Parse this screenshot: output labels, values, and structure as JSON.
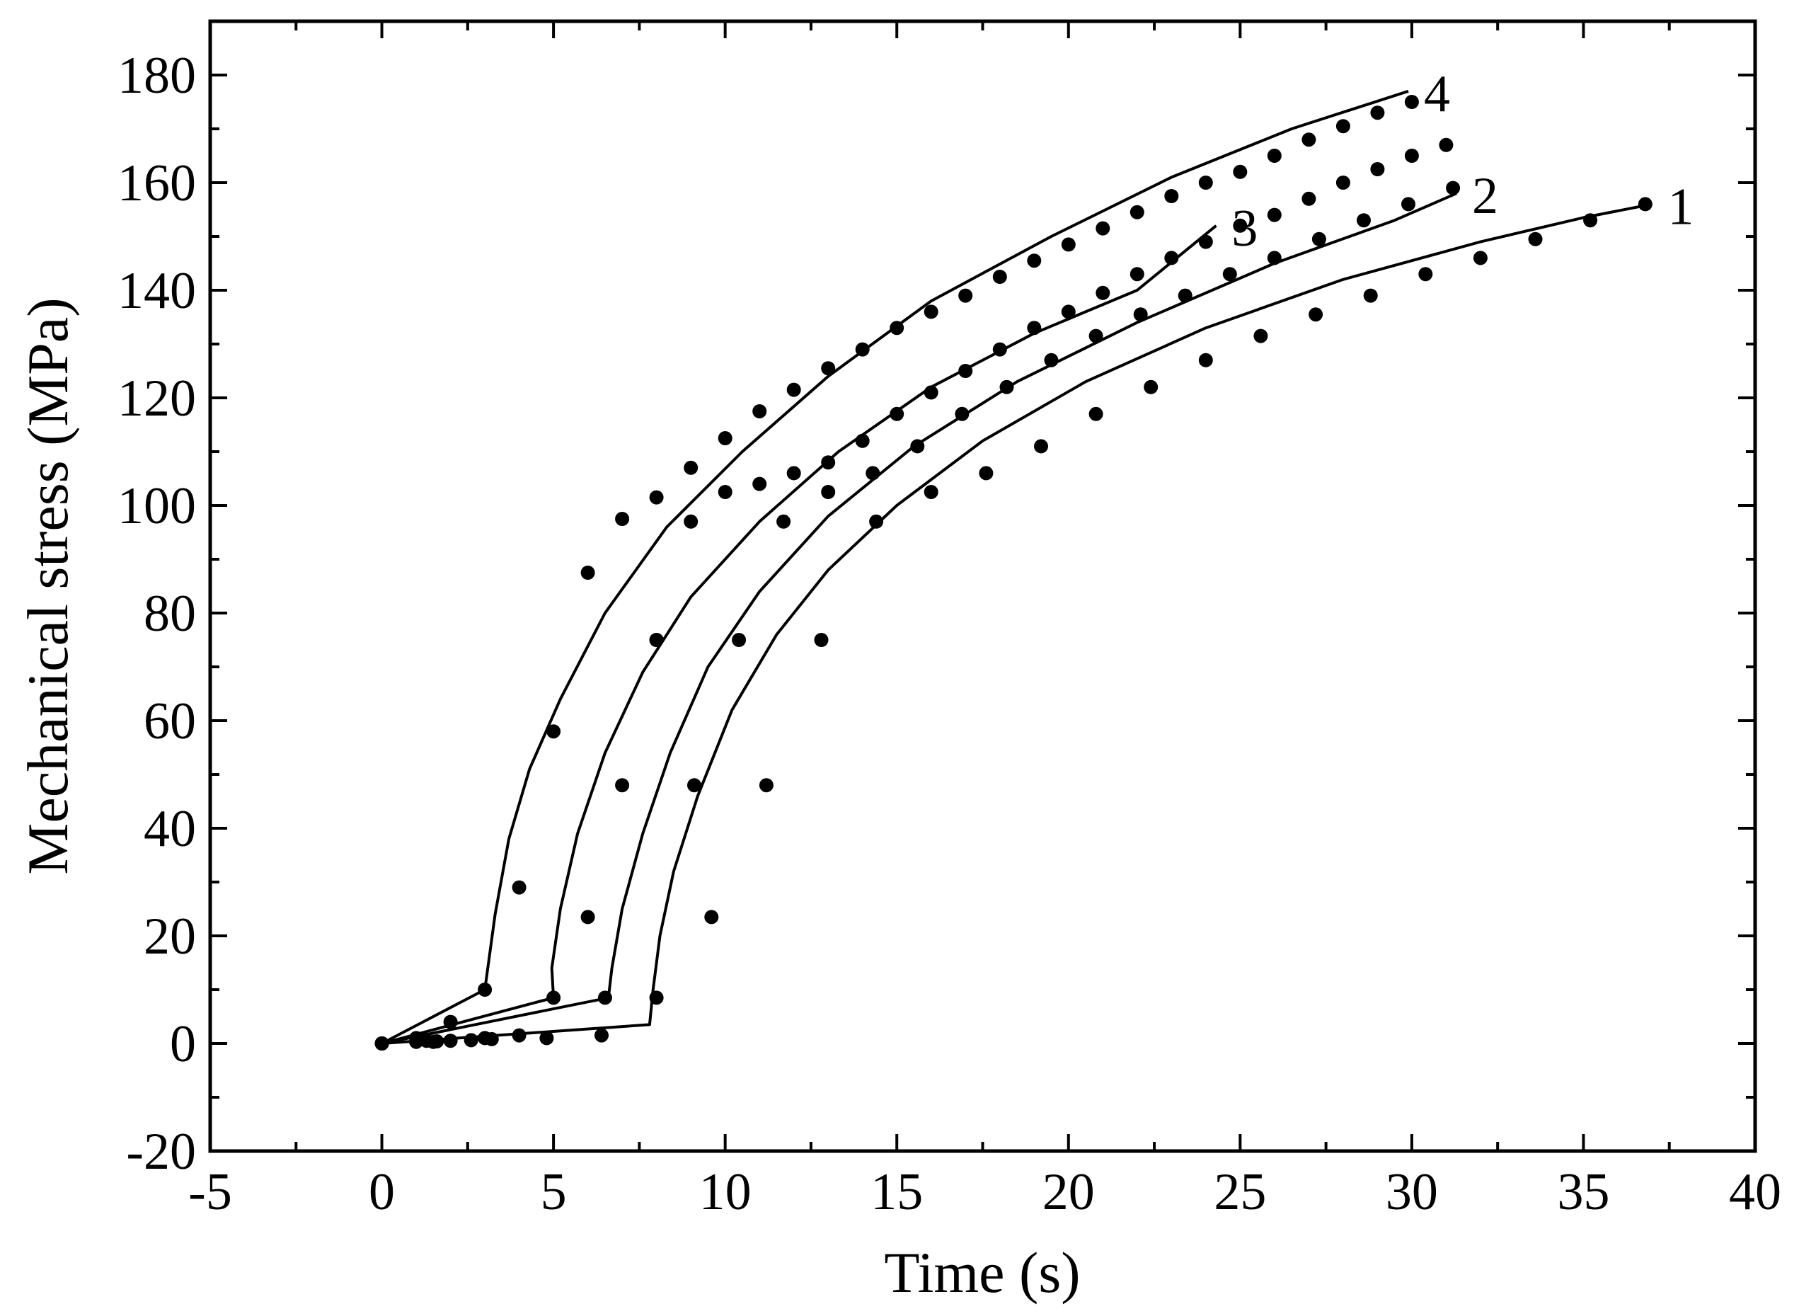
{
  "chart_data": {
    "type": "line",
    "xlabel": "Time (s)",
    "ylabel": "Mechanical stress (MPa)",
    "xlim": [
      -5,
      40
    ],
    "ylim": [
      -20,
      190
    ],
    "x_ticks": [
      -5,
      0,
      5,
      10,
      15,
      20,
      25,
      30,
      35,
      40
    ],
    "y_ticks": [
      -20,
      0,
      20,
      40,
      60,
      80,
      100,
      120,
      140,
      160,
      180
    ],
    "grid": false,
    "legend": "none",
    "series": [
      {
        "name": "1",
        "line": [
          [
            0,
            0
          ],
          [
            7.8,
            3.5
          ],
          [
            7.9,
            10
          ],
          [
            8.1,
            20
          ],
          [
            8.5,
            32
          ],
          [
            9.2,
            46
          ],
          [
            10.2,
            62
          ],
          [
            11.5,
            76
          ],
          [
            13,
            88
          ],
          [
            15,
            100
          ],
          [
            17.5,
            112
          ],
          [
            20.5,
            123
          ],
          [
            24,
            133
          ],
          [
            28,
            142
          ],
          [
            32,
            149
          ],
          [
            35,
            153.5
          ],
          [
            37,
            156
          ]
        ],
        "points": [
          [
            0,
            0
          ],
          [
            1,
            0.3
          ],
          [
            1.6,
            0.4
          ],
          [
            2,
            0.5
          ],
          [
            2.6,
            0.6
          ],
          [
            3.2,
            0.8
          ],
          [
            4.8,
            1
          ],
          [
            6.4,
            1.5
          ],
          [
            8,
            8.5
          ],
          [
            9.6,
            23.5
          ],
          [
            11.2,
            48
          ],
          [
            12.8,
            75
          ],
          [
            14.4,
            97
          ],
          [
            16,
            102.5
          ],
          [
            17.6,
            106
          ],
          [
            19.2,
            111
          ],
          [
            20.8,
            117
          ],
          [
            22.4,
            122
          ],
          [
            24,
            127
          ],
          [
            25.6,
            131.5
          ],
          [
            27.2,
            135.5
          ],
          [
            28.8,
            139
          ],
          [
            30.4,
            143
          ],
          [
            32,
            146
          ],
          [
            33.6,
            149.5
          ],
          [
            35.2,
            153
          ],
          [
            36.8,
            156
          ]
        ]
      },
      {
        "name": "2",
        "line": [
          [
            0,
            0
          ],
          [
            6.6,
            8.5
          ],
          [
            6.7,
            14
          ],
          [
            7,
            25
          ],
          [
            7.6,
            39
          ],
          [
            8.4,
            54
          ],
          [
            9.5,
            70
          ],
          [
            11,
            84
          ],
          [
            13,
            98
          ],
          [
            15.5,
            111
          ],
          [
            18.5,
            123
          ],
          [
            22,
            134
          ],
          [
            26,
            145
          ],
          [
            29.5,
            153
          ],
          [
            31.3,
            158
          ]
        ],
        "points": [
          [
            0,
            0
          ],
          [
            1.3,
            0.5
          ],
          [
            4,
            1.5
          ],
          [
            6.5,
            8.5
          ],
          [
            7,
            48
          ],
          [
            8,
            75
          ],
          [
            9,
            97
          ],
          [
            10,
            102.5
          ],
          [
            11,
            104
          ],
          [
            12,
            106
          ],
          [
            13,
            108
          ],
          [
            14,
            112
          ],
          [
            15,
            117
          ],
          [
            16,
            121
          ],
          [
            17,
            125
          ],
          [
            18,
            129
          ],
          [
            19,
            133
          ],
          [
            20,
            136
          ],
          [
            21,
            139.5
          ],
          [
            22,
            143
          ],
          [
            23,
            146
          ],
          [
            24,
            149
          ],
          [
            25,
            152
          ],
          [
            26,
            154
          ],
          [
            27,
            157
          ],
          [
            28,
            160
          ],
          [
            29,
            162.5
          ],
          [
            30,
            165
          ],
          [
            31,
            167
          ]
        ]
      },
      {
        "name": "3",
        "line": [
          [
            0,
            0
          ],
          [
            5,
            8.5
          ],
          [
            4.95,
            14
          ],
          [
            5.2,
            25
          ],
          [
            5.7,
            39
          ],
          [
            6.5,
            54
          ],
          [
            7.6,
            69
          ],
          [
            9,
            83
          ],
          [
            11,
            97
          ],
          [
            13.3,
            110
          ],
          [
            16,
            122
          ],
          [
            19,
            132
          ],
          [
            22,
            140
          ],
          [
            24.3,
            152
          ]
        ],
        "points": [
          [
            0,
            0
          ],
          [
            1.5,
            0.3
          ],
          [
            3,
            1
          ],
          [
            5,
            8.5
          ],
          [
            6,
            23.5
          ],
          [
            8,
            75
          ],
          [
            9.1,
            48
          ],
          [
            10.4,
            75
          ],
          [
            11.7,
            97
          ],
          [
            13,
            102.5
          ],
          [
            14.3,
            106
          ],
          [
            15.6,
            111
          ],
          [
            16.9,
            117
          ],
          [
            18.2,
            122
          ],
          [
            19.5,
            127
          ],
          [
            20.8,
            131.5
          ],
          [
            22.1,
            135.5
          ],
          [
            23.4,
            139
          ],
          [
            24.7,
            143
          ],
          [
            26,
            146
          ],
          [
            27.3,
            149.5
          ],
          [
            28.6,
            153
          ],
          [
            29.9,
            156
          ],
          [
            31.2,
            159
          ]
        ]
      },
      {
        "name": "4",
        "line": [
          [
            0,
            0
          ],
          [
            3,
            10
          ],
          [
            3.3,
            24
          ],
          [
            3.7,
            38
          ],
          [
            4.3,
            51
          ],
          [
            5.2,
            64
          ],
          [
            6.5,
            80
          ],
          [
            8.3,
            96
          ],
          [
            10.5,
            110
          ],
          [
            13,
            124
          ],
          [
            16,
            138
          ],
          [
            19.5,
            150
          ],
          [
            23,
            161
          ],
          [
            26.5,
            170
          ],
          [
            29.9,
            177
          ]
        ],
        "points": [
          [
            0,
            0
          ],
          [
            1,
            1
          ],
          [
            2,
            4
          ],
          [
            3,
            10
          ],
          [
            4,
            29
          ],
          [
            5,
            58
          ],
          [
            6,
            87.5
          ],
          [
            7,
            97.5
          ],
          [
            8,
            101.5
          ],
          [
            9,
            107
          ],
          [
            10,
            112.5
          ],
          [
            11,
            117.5
          ],
          [
            12,
            121.5
          ],
          [
            13,
            125.5
          ],
          [
            14,
            129
          ],
          [
            15,
            133
          ],
          [
            16,
            136
          ],
          [
            17,
            139
          ],
          [
            18,
            142.5
          ],
          [
            19,
            145.5
          ],
          [
            20,
            148.5
          ],
          [
            21,
            151.5
          ],
          [
            22,
            154.5
          ],
          [
            23,
            157.5
          ],
          [
            24,
            160
          ],
          [
            25,
            162
          ],
          [
            26,
            165
          ],
          [
            27,
            168
          ],
          [
            28,
            170.5
          ],
          [
            29,
            173
          ],
          [
            30,
            175
          ]
        ]
      }
    ]
  }
}
